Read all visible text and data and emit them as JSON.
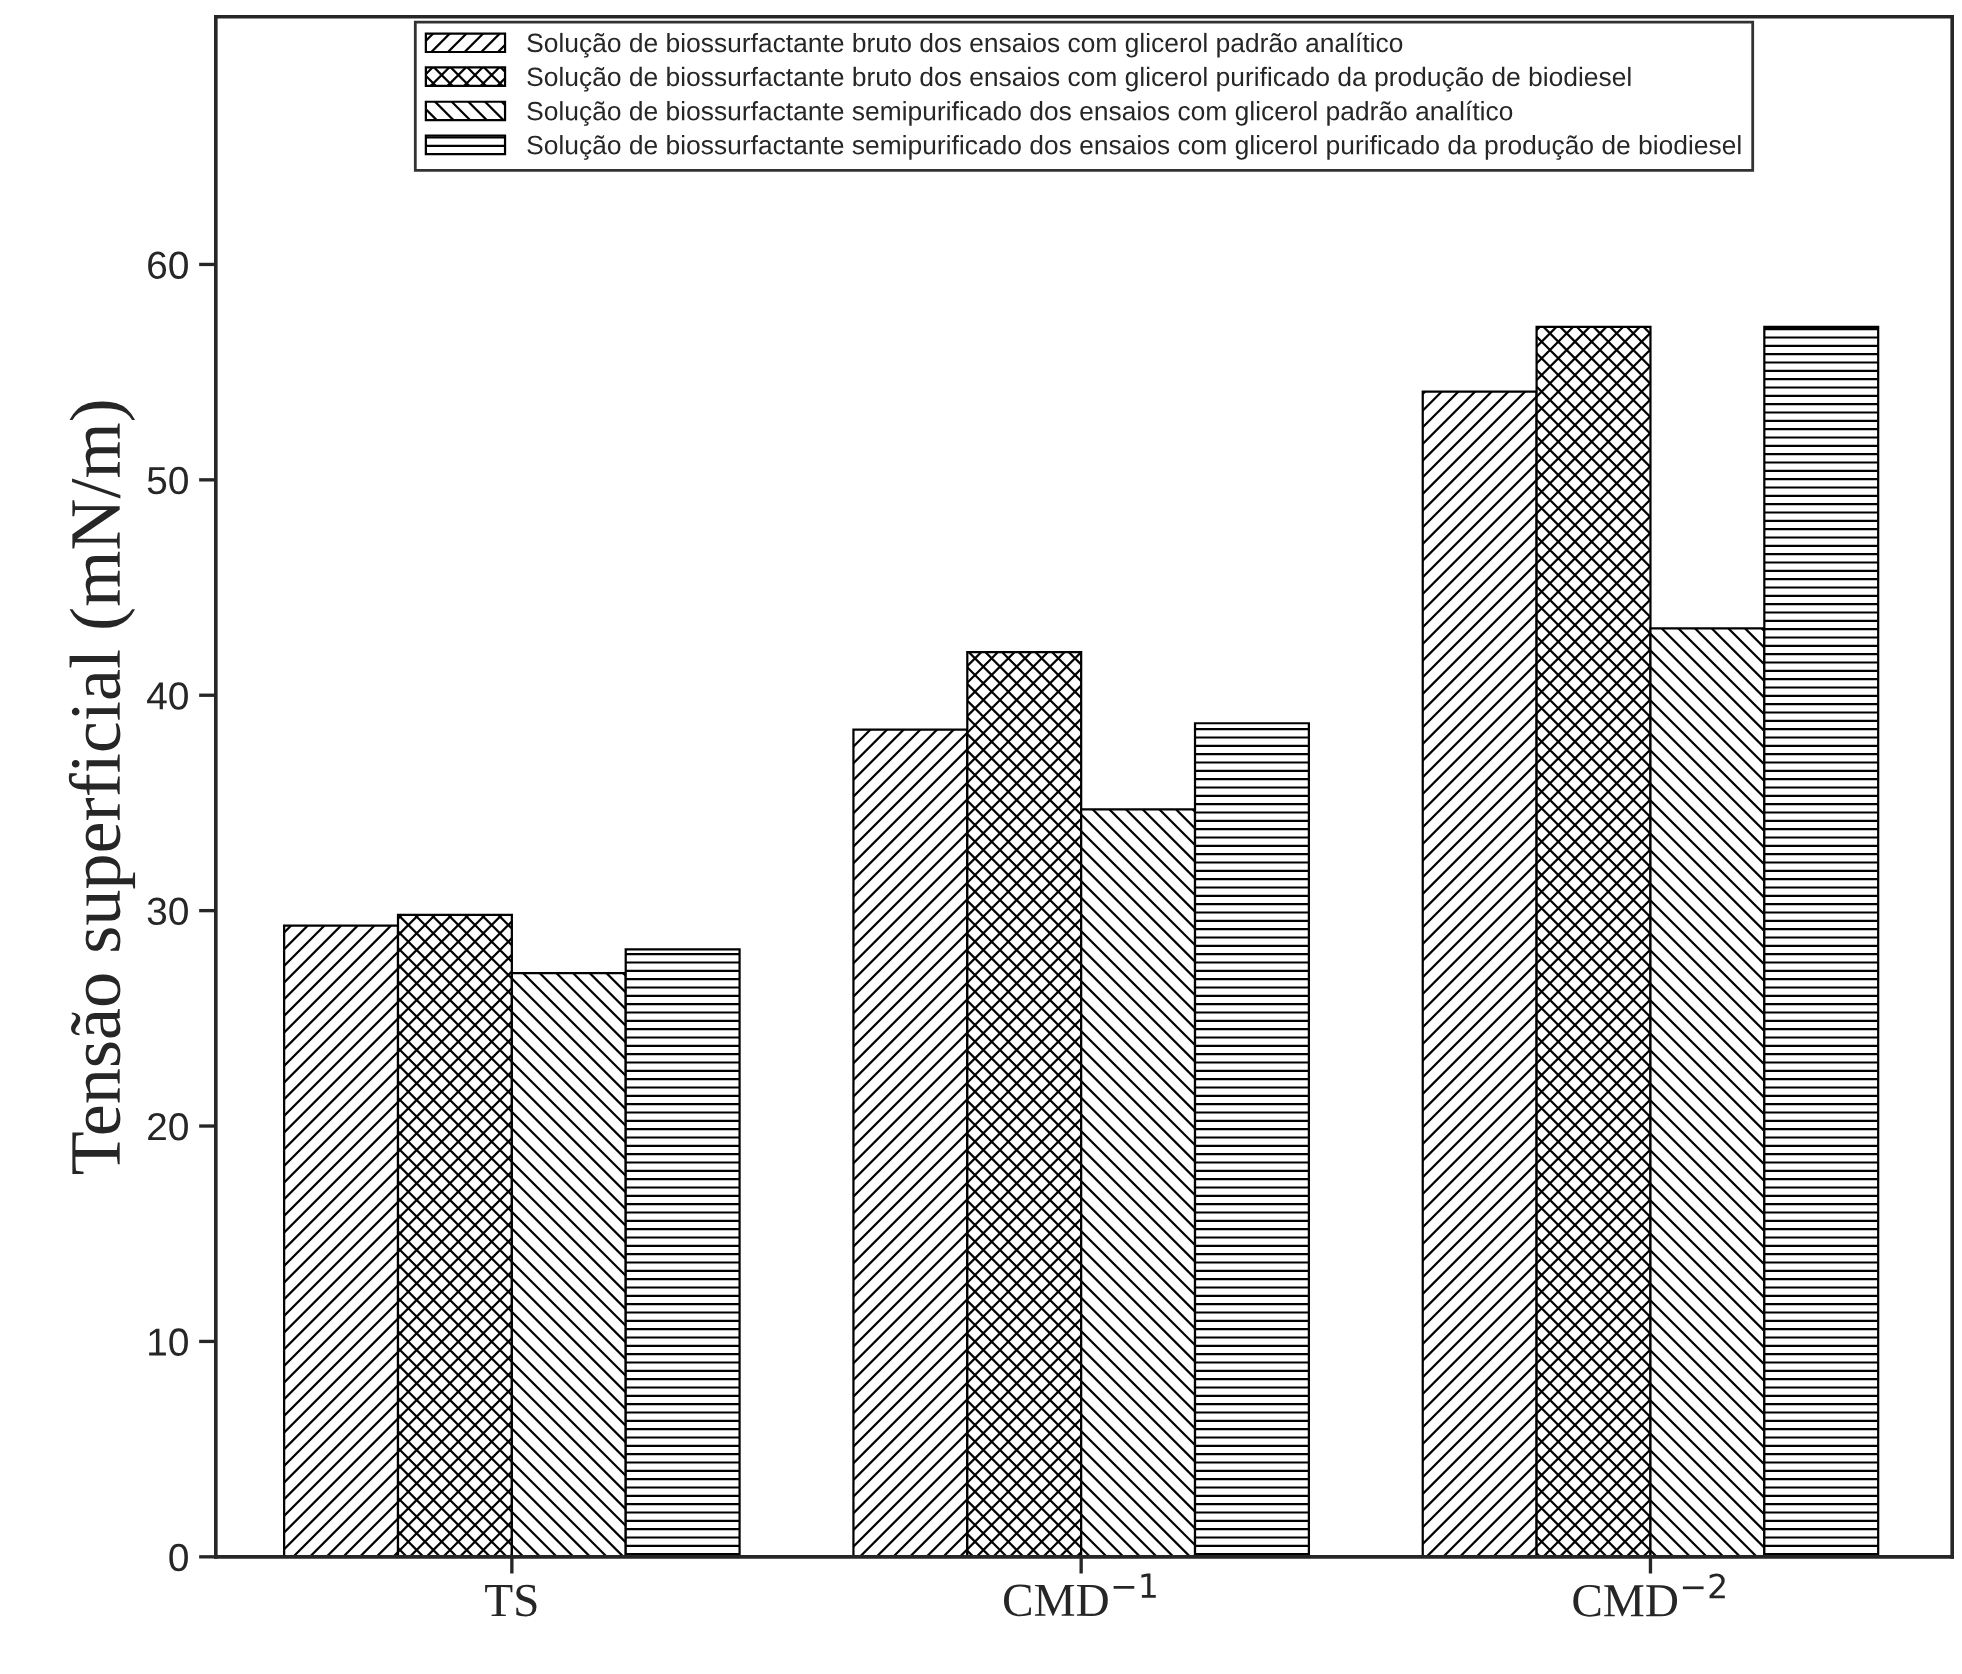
{
  "chart_data": {
    "type": "bar",
    "ylabel": "Tensão superficial (mN/m)",
    "categories": [
      "TS",
      "CMD$^{−1}$",
      "CMD$^{−2}$"
    ],
    "series": [
      {
        "name": "Solução de biossurfactante bruto dos ensaios com glicerol padrão analítico",
        "color": "#000000",
        "values": [
          29.3,
          38.4,
          54.1
        ]
      },
      {
        "name": "Solução de biossurfactante bruto dos ensaios com glicerol purificado da produção de biodiesel",
        "color": "#000000",
        "values": [
          29.8,
          42.0,
          57.1
        ]
      },
      {
        "name": "Solução de biossurfactante semipurificado dos ensaios com glicerol padrão analítico",
        "color": "#000000",
        "values": [
          27.1,
          34.7,
          43.1
        ]
      },
      {
        "name": "Solução de biossurfactante semipurificado dos ensaios com glicerol purificado da produção de biodiesel",
        "color": "#000000",
        "values": [
          28.2,
          38.7,
          57.1
        ]
      }
    ],
    "ylim": [
      0,
      71.5
    ],
    "yticks": [
      0,
      10,
      20,
      30,
      40,
      50,
      60
    ],
    "grid": false,
    "legend": "top"
  }
}
